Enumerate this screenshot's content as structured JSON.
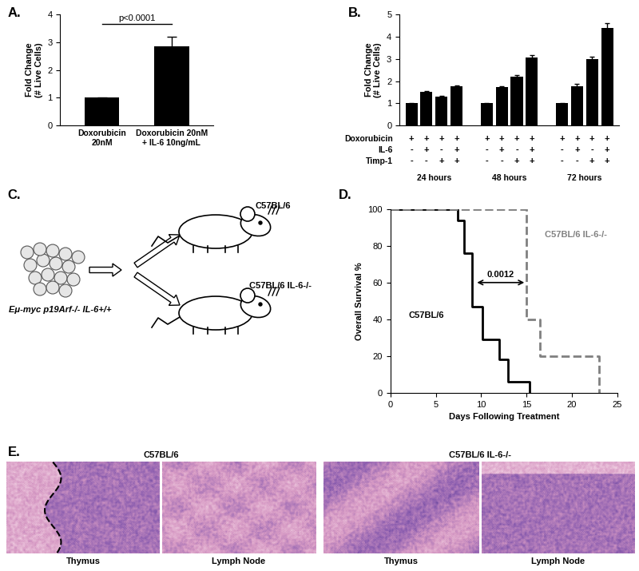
{
  "chart_data": [
    {
      "type": "bar",
      "title": "A.",
      "categories": [
        "Doxorubicin\n20nM",
        "Doxorubicin 20nM\n+ IL-6 10ng/mL"
      ],
      "values": [
        1.0,
        2.85
      ],
      "errors": [
        0.02,
        0.35
      ],
      "color": "#000000",
      "y_label": "Fold Change\n(# Live Cells)",
      "ylim": [
        0,
        4
      ],
      "yticks": [
        0,
        1,
        2,
        3,
        4
      ],
      "annotations": [
        "p<0.0001"
      ]
    },
    {
      "type": "bar",
      "title": "B.",
      "categories": [
        "24 hours",
        "48 hours",
        "72 hours"
      ],
      "values": [
        [
          1.0,
          1.5,
          1.3,
          1.78
        ],
        [
          1.0,
          1.72,
          2.2,
          3.05
        ],
        [
          1.0,
          1.78,
          3.0,
          4.4
        ]
      ],
      "errors": [
        [
          0.02,
          0.04,
          0.03,
          0.03
        ],
        [
          0.02,
          0.05,
          0.08,
          0.12
        ],
        [
          0.03,
          0.1,
          0.1,
          0.2
        ]
      ],
      "color": "#000000",
      "y_label": "Fold Change\n(# Live Cells)",
      "ylim": [
        0,
        5
      ],
      "yticks": [
        0,
        1,
        2,
        3,
        4,
        5
      ],
      "condition_rows": [
        {
          "name": "Doxorubicin",
          "signs": [
            "+",
            "+",
            "+",
            "+"
          ]
        },
        {
          "name": "IL-6",
          "signs": [
            "-",
            "+",
            "-",
            "+"
          ]
        },
        {
          "name": "Timp-1",
          "signs": [
            "-",
            "-",
            "+",
            "+"
          ]
        }
      ]
    },
    {
      "type": "line",
      "title": "D.",
      "x_label": "Days Following Treatment",
      "y_label": "Overall Survival %",
      "xlim": [
        0,
        25
      ],
      "xticks": [
        0,
        5,
        10,
        15,
        20,
        25
      ],
      "ylim": [
        0,
        100
      ],
      "yticks": [
        0,
        20,
        40,
        60,
        80,
        100
      ],
      "series": [
        {
          "name": "C57BL/6",
          "color": "#000000",
          "line_style": "solid",
          "x": [
            0,
            7.4,
            8.1,
            9.0,
            10.1,
            12.0,
            13.0,
            15.3
          ],
          "values": [
            100,
            94,
            76,
            47,
            29,
            18,
            6,
            0
          ]
        },
        {
          "name": "C57BL/6 IL-6-/-",
          "color": "#808080",
          "line_style": "dashed",
          "x": [
            0,
            15.0,
            16.5,
            23.0
          ],
          "values": [
            100,
            40,
            20,
            0
          ]
        }
      ],
      "annotations": [
        "0.0012"
      ]
    }
  ],
  "diagram": {
    "panel": "C.",
    "source_label": "Eμ-myc p19Arf-/- IL-6+/+",
    "recipients": [
      "C57BL/6",
      "C57BL/6 IL-6-/-"
    ]
  },
  "micrographs": {
    "panel": "E.",
    "groups": [
      {
        "title": "C57BL/6",
        "images": [
          "Thymus",
          "Lymph Node"
        ]
      },
      {
        "title": "C57BL/6 IL-6-/-",
        "images": [
          "Thymus",
          "Lymph Node"
        ]
      }
    ]
  }
}
